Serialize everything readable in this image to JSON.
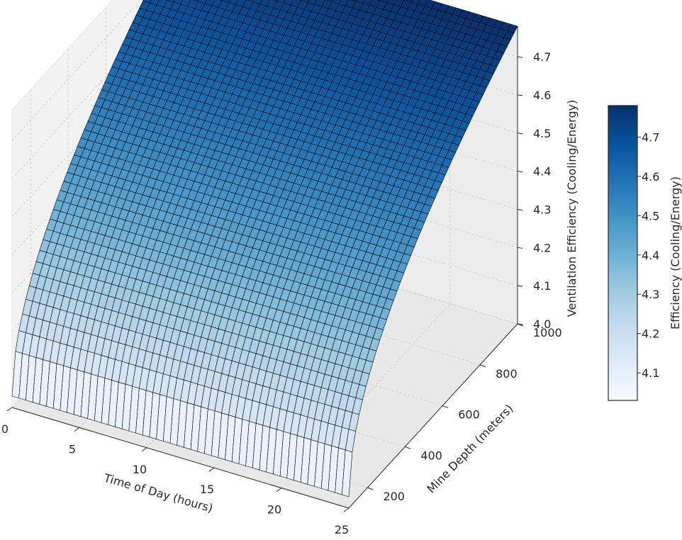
{
  "chart_data": {
    "type": "surface3d",
    "title": "",
    "colormap": "Blues",
    "x_axis": {
      "label": "Time of Day (hours)",
      "range": [
        0,
        25
      ],
      "ticks": [
        "0",
        "5",
        "10",
        "15",
        "20",
        "25"
      ],
      "tick_values": [
        0,
        5,
        10,
        15,
        20,
        25
      ]
    },
    "y_axis": {
      "label": "Mine Depth (meters)",
      "range": [
        100,
        1000
      ],
      "ticks": [
        "200",
        "400",
        "600",
        "800",
        "1000"
      ],
      "tick_values": [
        200,
        400,
        600,
        800,
        1000
      ]
    },
    "z_axis": {
      "label": "Ventilation Efficiency (Cooling/Energy)",
      "range": [
        4.0,
        4.78
      ],
      "ticks": [
        "4.0",
        "4.1",
        "4.2",
        "4.3",
        "4.4",
        "4.5",
        "4.6",
        "4.7"
      ],
      "tick_values": [
        4.0,
        4.1,
        4.2,
        4.3,
        4.4,
        4.5,
        4.6,
        4.7
      ]
    },
    "colorbar": {
      "label": "Efficiency (Cooling/Energy)",
      "range": [
        4.03,
        4.78
      ],
      "ticks": [
        "4.1",
        "4.2",
        "4.3",
        "4.4",
        "4.5",
        "4.6",
        "4.7"
      ],
      "tick_values": [
        4.1,
        4.2,
        4.3,
        4.4,
        4.5,
        4.6,
        4.7
      ]
    },
    "surface": {
      "x_samples": 50,
      "y_samples": 50,
      "y_range": [
        100,
        1000
      ],
      "z_at_min_depth": 4.03,
      "z_at_max_depth": 4.78
    }
  }
}
